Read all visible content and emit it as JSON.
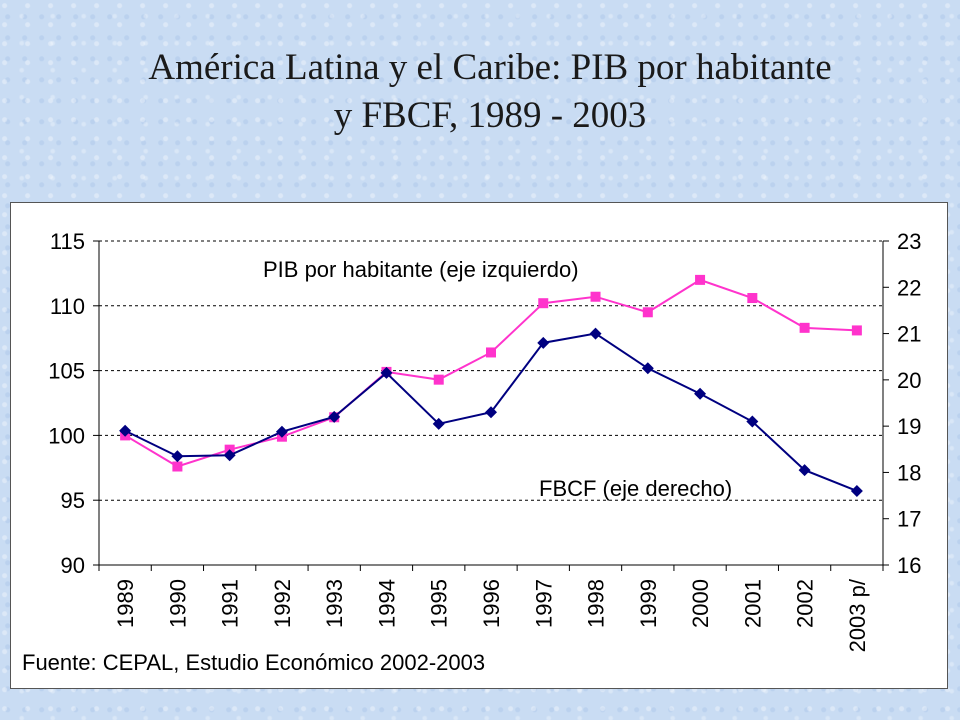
{
  "title": {
    "line1": "América Latina y el Caribe: PIB por habitante",
    "line2": "y FBCF, 1989 - 2003"
  },
  "colors": {
    "pib": "#ff33cc",
    "fbcf": "#000080",
    "grid": "#000000"
  },
  "source": "Fuente: CEPAL, Estudio Económico 2002-2003",
  "chart_data": {
    "type": "line",
    "categories": [
      "1989",
      "1990",
      "1991",
      "1992",
      "1993",
      "1994",
      "1995",
      "1996",
      "1997",
      "1998",
      "1999",
      "2000",
      "2001",
      "2002",
      "2003 p/"
    ],
    "left_axis": {
      "ylim": [
        90,
        115
      ],
      "ticks": [
        "90",
        "95",
        "100",
        "105",
        "110",
        "115"
      ]
    },
    "right_axis": {
      "ylim": [
        16,
        23
      ],
      "ticks": [
        "16",
        "17",
        "18",
        "19",
        "20",
        "21",
        "22",
        "23"
      ]
    },
    "grid": "dashed horizontal",
    "series": [
      {
        "name": "PIB por habitante (eje izquierdo)",
        "axis": "left",
        "marker": "square",
        "values": [
          100.0,
          97.6,
          98.9,
          99.9,
          101.4,
          104.9,
          104.3,
          106.4,
          110.2,
          110.7,
          109.5,
          112.0,
          110.6,
          108.3,
          108.1
        ]
      },
      {
        "name": "FBCF (eje derecho)",
        "axis": "right",
        "marker": "diamond",
        "values": [
          18.9,
          18.35,
          18.37,
          18.88,
          19.2,
          20.15,
          19.05,
          19.3,
          20.8,
          21.0,
          20.25,
          19.7,
          19.1,
          18.05,
          17.6
        ]
      }
    ]
  }
}
